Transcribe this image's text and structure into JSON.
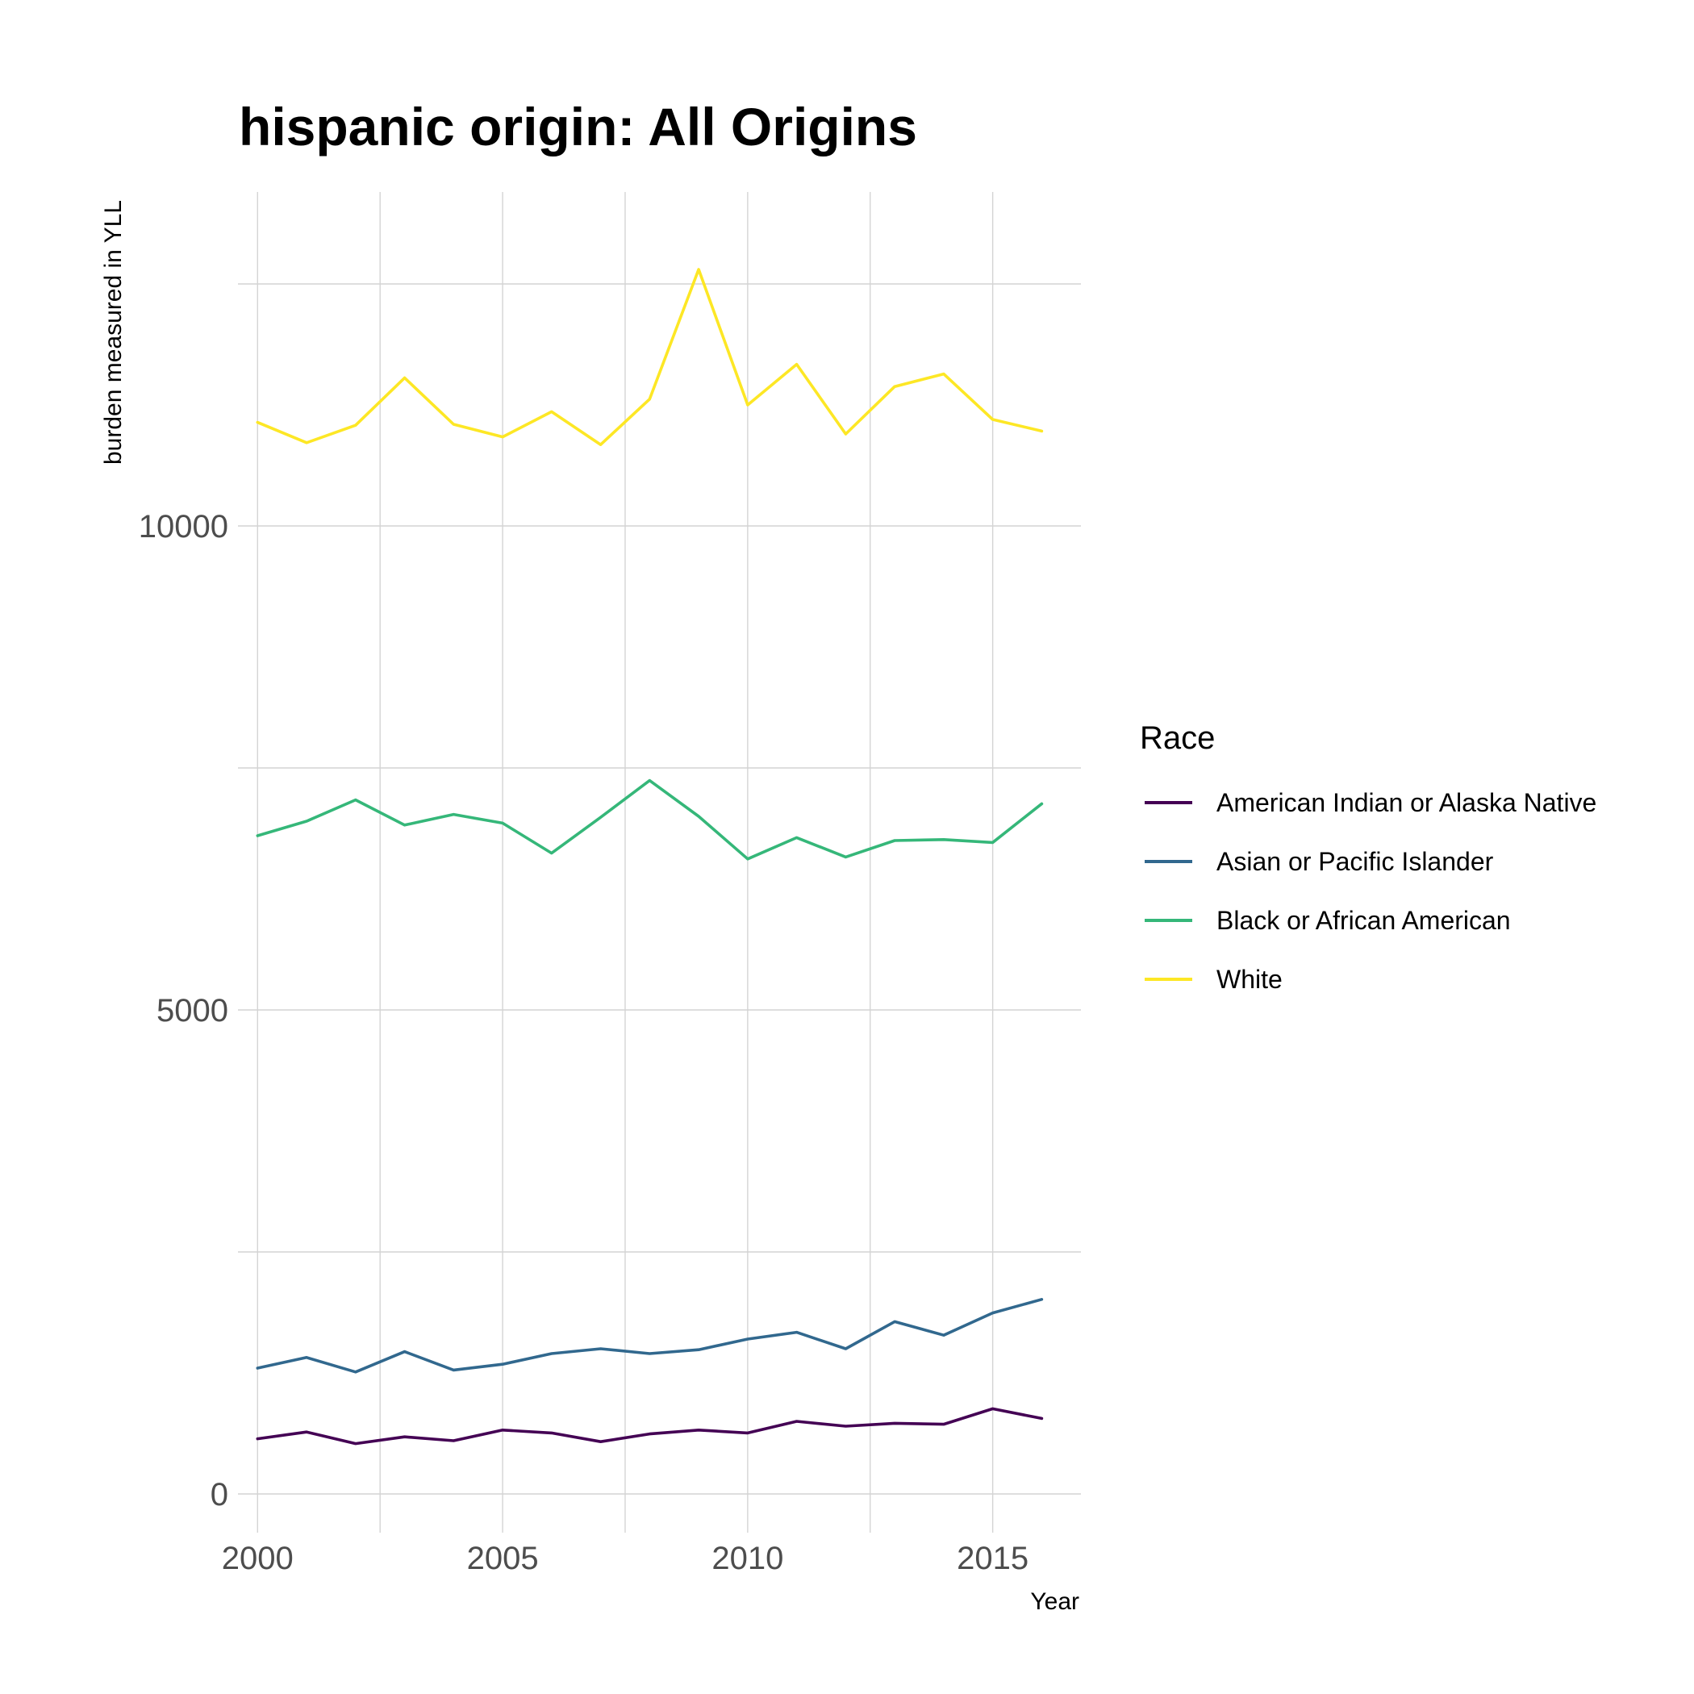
{
  "chart_data": {
    "type": "line",
    "title": "hispanic origin: All Origins",
    "xlabel": "Year",
    "ylabel": "burden measured in YLL",
    "x": [
      2000,
      2001,
      2002,
      2003,
      2004,
      2005,
      2006,
      2007,
      2008,
      2009,
      2010,
      2011,
      2012,
      2013,
      2014,
      2015,
      2016
    ],
    "xlim": [
      1999.6,
      2016.8
    ],
    "ylim": [
      -400,
      13450
    ],
    "x_ticks": [
      2000,
      2005,
      2010,
      2015
    ],
    "x_tick_labels": [
      "2000",
      "2005",
      "2010",
      "2015"
    ],
    "y_ticks": [
      0,
      5000,
      10000
    ],
    "y_tick_labels": [
      "0",
      "5000",
      "10000"
    ],
    "grid": true,
    "legend": {
      "title": "Race",
      "position": "right"
    },
    "series": [
      {
        "name": "American Indian or Alaska Native",
        "color": "#440154",
        "values": [
          570,
          640,
          520,
          590,
          550,
          660,
          630,
          540,
          620,
          660,
          630,
          750,
          700,
          730,
          720,
          880,
          780
        ]
      },
      {
        "name": "Asian or Pacific Islander",
        "color": "#31688E",
        "values": [
          1300,
          1410,
          1260,
          1470,
          1280,
          1340,
          1450,
          1500,
          1450,
          1490,
          1600,
          1670,
          1500,
          1780,
          1640,
          1870,
          2010
        ]
      },
      {
        "name": "Black or African American",
        "color": "#35B779",
        "values": [
          6800,
          6950,
          7170,
          6910,
          7020,
          6930,
          6620,
          6990,
          7370,
          7000,
          6560,
          6780,
          6580,
          6750,
          6760,
          6730,
          7130
        ]
      },
      {
        "name": "White",
        "color": "#FDE725",
        "values": [
          11070,
          10860,
          11040,
          11530,
          11050,
          10920,
          11180,
          10840,
          11310,
          12650,
          11250,
          11670,
          10950,
          11440,
          11570,
          11100,
          10980
        ]
      }
    ]
  }
}
